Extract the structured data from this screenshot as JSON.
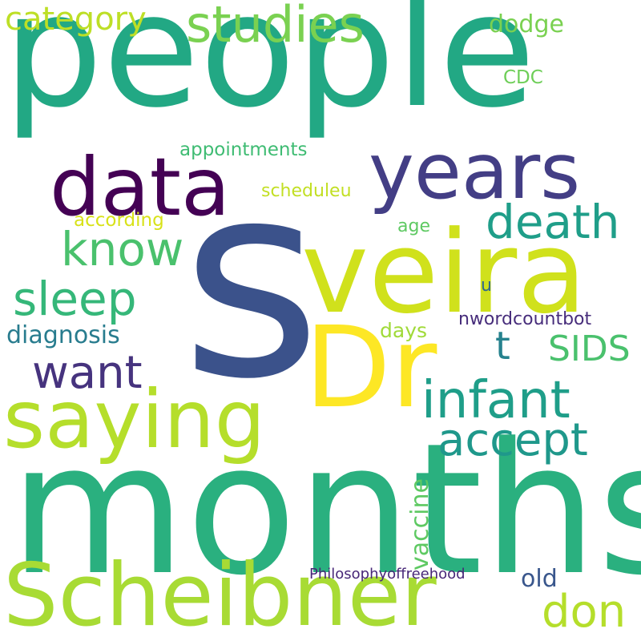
{
  "words": {
    "people": {
      "text": "people",
      "color": "#22a884"
    },
    "months": {
      "text": "months",
      "color": "#2ab07f"
    },
    "s": {
      "text": "s",
      "color": "#3b528b"
    },
    "veira": {
      "text": "veira",
      "color": "#d0e11c"
    },
    "dr": {
      "text": "Dr",
      "color": "#fde725"
    },
    "scheibner": {
      "text": "Scheibner",
      "color": "#a8db34"
    },
    "saying": {
      "text": "saying",
      "color": "#b5de2b"
    },
    "data": {
      "text": "data",
      "color": "#440154"
    },
    "years": {
      "text": "years",
      "color": "#433e85"
    },
    "infant": {
      "text": "infant",
      "color": "#1f9e89"
    },
    "studies": {
      "text": "studies",
      "color": "#7ad151"
    },
    "death": {
      "text": "death",
      "color": "#1f9e89"
    },
    "sleep": {
      "text": "sleep",
      "color": "#35b779"
    },
    "know": {
      "text": "know",
      "color": "#4ac16d"
    },
    "accept": {
      "text": "accept",
      "color": "#1f988b"
    },
    "want": {
      "text": "want",
      "color": "#46337e"
    },
    "don": {
      "text": "don",
      "color": "#b5de2b"
    },
    "category": {
      "text": "category",
      "color": "#bddf26"
    },
    "t": {
      "text": "t",
      "color": "#26828e"
    },
    "sids": {
      "text": "SIDS",
      "color": "#4ac16d"
    },
    "diagnosis": {
      "text": "diagnosis",
      "color": "#287c8e"
    },
    "vaccine": {
      "text": "vaccine",
      "color": "#5ec962"
    },
    "dodge": {
      "text": "dodge",
      "color": "#7ad151"
    },
    "appointments": {
      "text": "appointments",
      "color": "#3fbc73"
    },
    "days": {
      "text": "days",
      "color": "#a0da39"
    },
    "old": {
      "text": "old",
      "color": "#39568c"
    },
    "scheduleu": {
      "text": "scheduleu",
      "color": "#c2df23"
    },
    "cdc": {
      "text": "CDC",
      "color": "#6ece58"
    },
    "according": {
      "text": "according",
      "color": "#d8e219"
    },
    "age": {
      "text": "age",
      "color": "#5ec962"
    },
    "nwordcountbot": {
      "text": "nwordcountbot",
      "color": "#472d7b"
    },
    "u": {
      "text": "u",
      "color": "#30698e"
    },
    "philosophy": {
      "text": "Philosophyoffreehood",
      "color": "#482878"
    }
  }
}
